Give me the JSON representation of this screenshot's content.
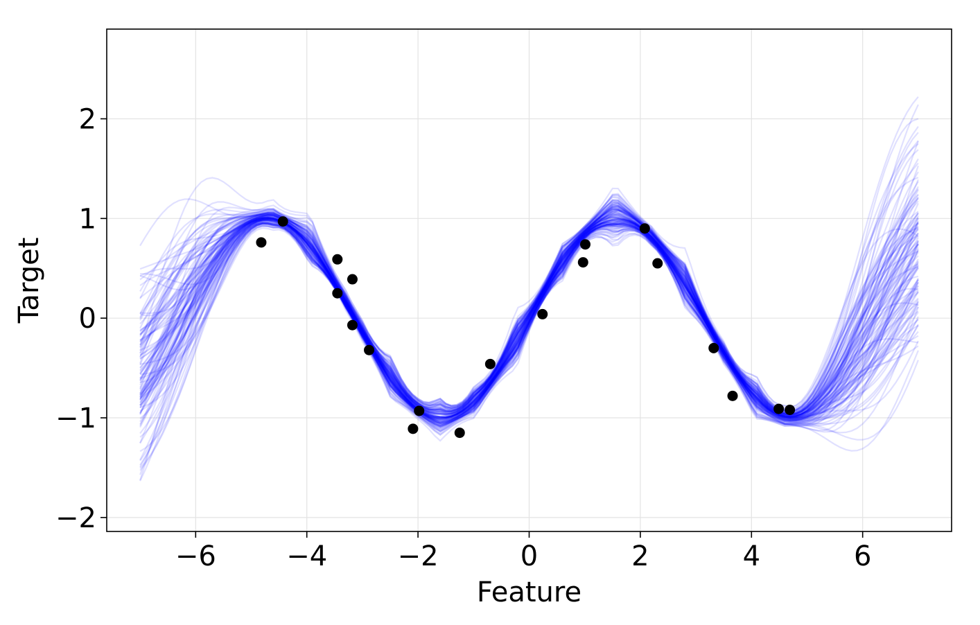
{
  "chart_data": {
    "type": "line",
    "title": "",
    "xlabel": "Feature",
    "ylabel": "Target",
    "xlim": [
      -7.6,
      7.6
    ],
    "ylim": [
      -2.14,
      2.9
    ],
    "xticks": [
      -6,
      -4,
      -2,
      0,
      2,
      4,
      6
    ],
    "yticks": [
      -2,
      -1,
      0,
      1,
      2
    ],
    "xtick_labels": [
      "−6",
      "−4",
      "−2",
      "0",
      "2",
      "4",
      "6"
    ],
    "ytick_labels": [
      "−2",
      "−1",
      "0",
      "1",
      "2"
    ],
    "grid": true,
    "posterior_samples": {
      "count": 120,
      "x_range": [
        -7,
        7
      ],
      "mean_function": "sin(x)",
      "color": "#0000ff",
      "opacity": 0.12
    },
    "observations": {
      "color": "#000000",
      "x": [
        -4.82,
        -4.43,
        -3.45,
        -3.45,
        -3.18,
        -3.18,
        -2.88,
        -2.09,
        -1.98,
        -1.25,
        -0.7,
        0.24,
        0.97,
        1.01,
        2.08,
        2.31,
        3.32,
        3.66,
        4.49,
        4.69
      ],
      "y": [
        0.76,
        0.97,
        0.59,
        0.25,
        0.39,
        -0.07,
        -0.32,
        -1.11,
        -0.93,
        -1.15,
        -0.46,
        0.04,
        0.56,
        0.74,
        0.9,
        0.55,
        -0.3,
        -0.78,
        -0.91,
        -0.92
      ]
    }
  }
}
